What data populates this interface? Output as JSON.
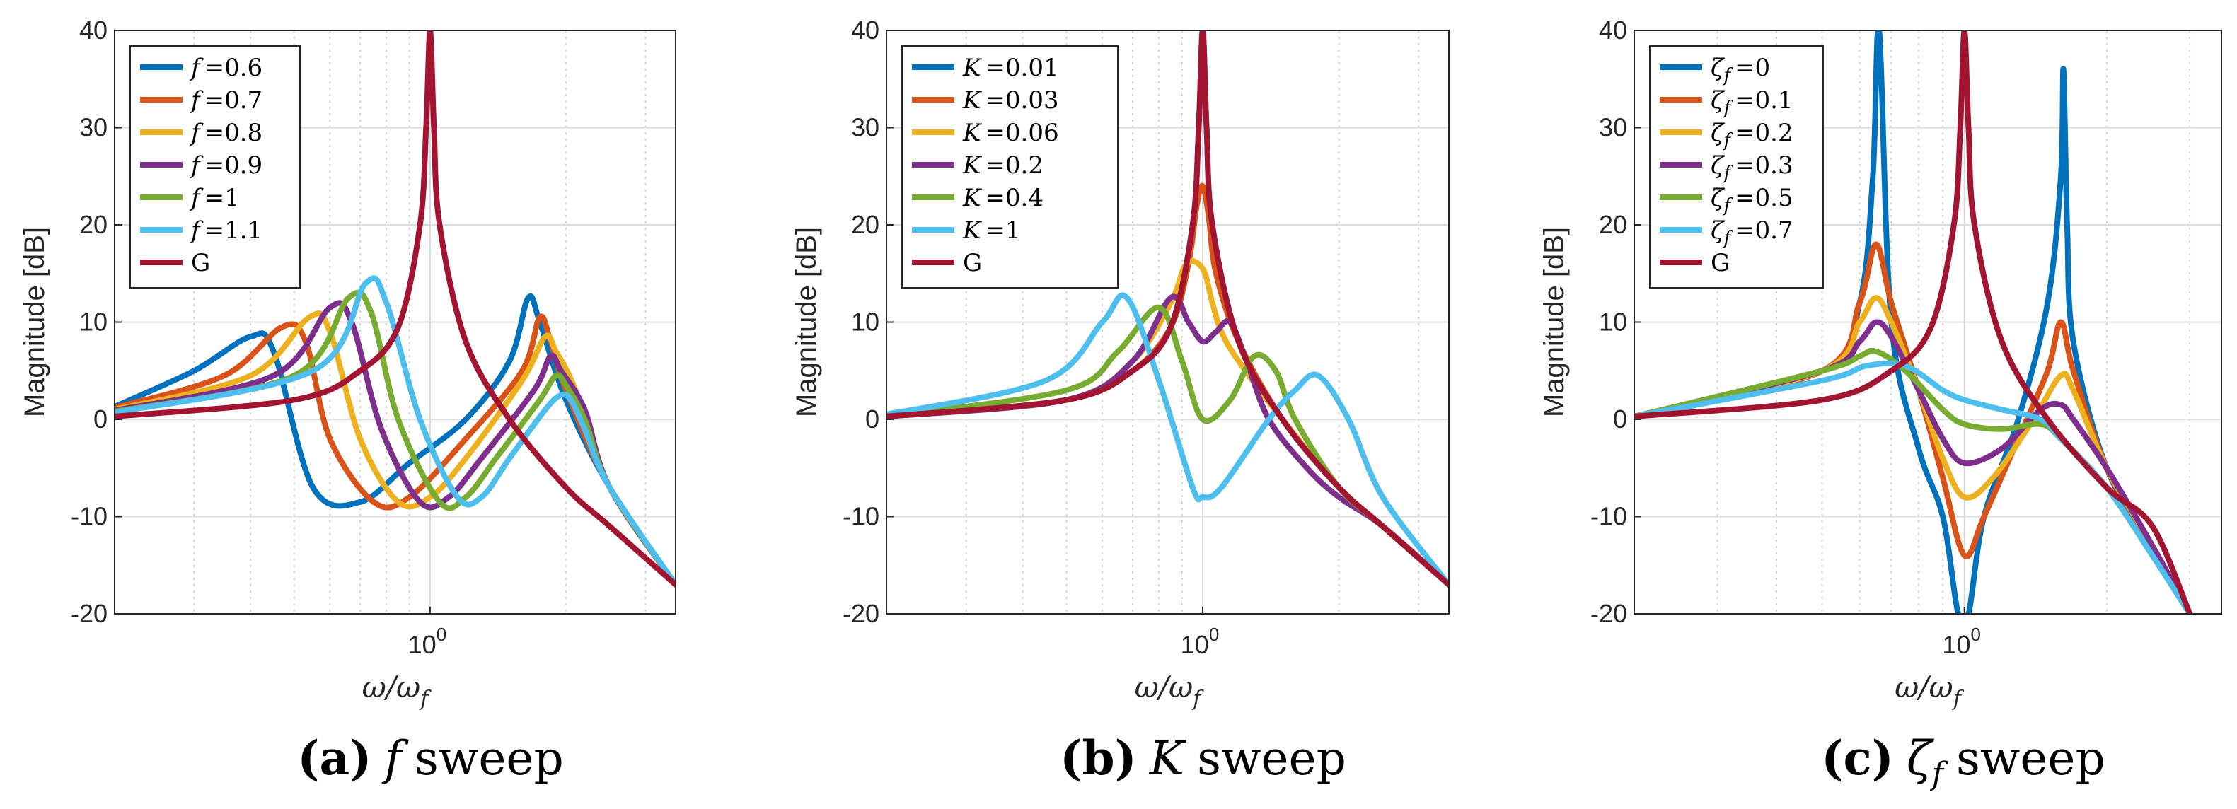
{
  "chart_data": [
    {
      "type": "line",
      "id": "a",
      "title": "",
      "xlabel": "ω/ω_f",
      "ylabel": "Magnitude [dB]",
      "xscale": "log",
      "xlim": [
        0.2,
        3.5
      ],
      "ylim": [
        -20,
        40
      ],
      "yticks": [
        -20,
        -10,
        0,
        10,
        20,
        30,
        40
      ],
      "xtick_label": "10^0",
      "grid": true,
      "legend_position": "top-left",
      "caption": {
        "letter": "(a)",
        "symbol": "f",
        "text": "sweep"
      },
      "series": [
        {
          "name": "f",
          "label": "=0.6",
          "color": "#0072BD",
          "x": [
            0.2,
            0.3,
            0.4,
            0.45,
            0.55,
            0.7,
            0.9,
            1.2,
            1.5,
            1.65,
            1.75,
            2.0,
            2.5,
            3.5
          ],
          "y": [
            1.3,
            5,
            8.5,
            7,
            -7,
            -8.5,
            -4.5,
            0,
            6,
            12.5,
            10,
            2,
            -7,
            -17
          ]
        },
        {
          "name": "f",
          "label": "=0.7",
          "color": "#D95319",
          "x": [
            0.2,
            0.35,
            0.47,
            0.53,
            0.6,
            0.75,
            0.9,
            1.2,
            1.6,
            1.75,
            1.85,
            2.0,
            2.5,
            3.5
          ],
          "y": [
            1.2,
            4.5,
            9.5,
            8,
            -2,
            -8.5,
            -8,
            -2,
            5,
            10.5,
            8,
            3,
            -7,
            -17
          ]
        },
        {
          "name": "f",
          "label": "=0.8",
          "color": "#EDB120",
          "x": [
            0.2,
            0.4,
            0.54,
            0.6,
            0.7,
            0.85,
            1.0,
            1.2,
            1.6,
            1.8,
            1.9,
            2.1,
            2.5,
            3.5
          ],
          "y": [
            1,
            4.5,
            10.5,
            9,
            -2,
            -8.5,
            -8,
            -4,
            4,
            8.5,
            7,
            3,
            -7,
            -17
          ]
        },
        {
          "name": "f",
          "label": "=0.9",
          "color": "#7E2F8E",
          "x": [
            0.2,
            0.45,
            0.6,
            0.67,
            0.78,
            0.95,
            1.1,
            1.3,
            1.7,
            1.85,
            1.95,
            2.2,
            2.5,
            3.5
          ],
          "y": [
            0.9,
            4.5,
            11.5,
            10,
            -1,
            -8.5,
            -8,
            -4,
            3,
            6.5,
            5,
            1,
            -7,
            -17
          ]
        },
        {
          "name": "f",
          "label": "=1",
          "color": "#77AC30",
          "x": [
            0.2,
            0.5,
            0.66,
            0.74,
            0.85,
            1.05,
            1.2,
            1.4,
            1.75,
            1.9,
            2.0,
            2.2,
            2.5,
            3.5
          ],
          "y": [
            0.8,
            4.5,
            12.5,
            11,
            0,
            -8.5,
            -8,
            -4,
            2,
            4.5,
            3.5,
            0,
            -7,
            -17
          ]
        },
        {
          "name": "f",
          "label": "=1.1",
          "color": "#4DBEEE",
          "x": [
            0.2,
            0.55,
            0.72,
            0.8,
            0.95,
            1.15,
            1.3,
            1.5,
            1.8,
            1.95,
            2.05,
            2.2,
            2.5,
            3.5
          ],
          "y": [
            0.7,
            5,
            14,
            12,
            0,
            -8,
            -8,
            -4,
            1,
            2.5,
            2,
            -1,
            -7,
            -17
          ]
        },
        {
          "name": "G",
          "label": "",
          "color": "#A2142F",
          "x": [
            0.2,
            0.5,
            0.7,
            0.85,
            0.95,
            0.98,
            1.0,
            1.02,
            1.05,
            1.2,
            1.5,
            2.0,
            2.5,
            3.5
          ],
          "y": [
            0.3,
            2,
            5,
            9.5,
            20,
            30,
            40,
            30,
            20,
            8,
            0,
            -7,
            -11,
            -17
          ]
        }
      ]
    },
    {
      "type": "line",
      "id": "b",
      "title": "",
      "xlabel": "ω/ω_f",
      "ylabel": "Magnitude [dB]",
      "xscale": "log",
      "xlim": [
        0.2,
        3.5
      ],
      "ylim": [
        -20,
        40
      ],
      "yticks": [
        -20,
        -10,
        0,
        10,
        20,
        30,
        40
      ],
      "xtick_label": "10^0",
      "grid": true,
      "legend_position": "top-left",
      "caption": {
        "letter": "(b)",
        "symbol": "K",
        "text": "sweep"
      },
      "series": [
        {
          "name": "K",
          "label": "=0.01",
          "color": "#0072BD",
          "x": [
            0.2,
            0.5,
            0.7,
            0.85,
            0.95,
            0.98,
            1.0,
            1.02,
            1.05,
            1.2,
            1.5,
            2.0,
            2.5,
            3.5
          ],
          "y": [
            0.3,
            2,
            5,
            9.5,
            20,
            30,
            40,
            30,
            20,
            8,
            0,
            -7,
            -11,
            -17
          ]
        },
        {
          "name": "K",
          "label": "=0.03",
          "color": "#D95319",
          "x": [
            0.2,
            0.5,
            0.7,
            0.85,
            0.93,
            0.97,
            1.0,
            1.03,
            1.07,
            1.2,
            1.5,
            2.0,
            2.5,
            3.5
          ],
          "y": [
            0.3,
            2,
            5,
            9.5,
            16,
            22,
            24,
            21,
            15,
            8,
            0,
            -7,
            -11,
            -17
          ]
        },
        {
          "name": "K",
          "label": "=0.06",
          "color": "#EDB120",
          "x": [
            0.2,
            0.5,
            0.7,
            0.85,
            0.92,
            1.0,
            1.05,
            1.1,
            1.2,
            1.5,
            2.0,
            2.5,
            3.5
          ],
          "y": [
            0.3,
            2,
            6,
            12,
            16,
            15.5,
            12,
            9,
            6,
            0,
            -7,
            -11,
            -17
          ]
        },
        {
          "name": "K",
          "label": "=0.2",
          "color": "#7E2F8E",
          "x": [
            0.2,
            0.5,
            0.7,
            0.85,
            0.93,
            1.0,
            1.07,
            1.15,
            1.25,
            1.4,
            1.7,
            2.0,
            2.5,
            3.5
          ],
          "y": [
            0.3,
            2,
            6,
            12.5,
            10,
            8,
            9,
            10,
            6,
            0,
            -5,
            -8,
            -11,
            -17
          ]
        },
        {
          "name": "K",
          "label": "=0.4",
          "color": "#77AC30",
          "x": [
            0.2,
            0.5,
            0.65,
            0.8,
            0.9,
            1.0,
            1.15,
            1.3,
            1.45,
            1.6,
            2.0,
            2.5,
            3.5
          ],
          "y": [
            0.3,
            3,
            7,
            11.5,
            6,
            0,
            2,
            6.5,
            5,
            0,
            -7,
            -11,
            -17
          ]
        },
        {
          "name": "K",
          "label": "=1",
          "color": "#4DBEEE",
          "x": [
            0.2,
            0.45,
            0.6,
            0.68,
            0.8,
            0.95,
            1.0,
            1.1,
            1.4,
            1.6,
            1.8,
            2.1,
            2.5,
            3.5
          ],
          "y": [
            0.5,
            4,
            10,
            12.5,
            4,
            -7,
            -8,
            -7,
            0,
            3,
            4.5,
            0,
            -8,
            -17
          ]
        },
        {
          "name": "G",
          "label": "",
          "color": "#A2142F",
          "x": [
            0.2,
            0.5,
            0.7,
            0.85,
            0.95,
            0.98,
            1.0,
            1.02,
            1.05,
            1.2,
            1.5,
            2.0,
            2.5,
            3.5
          ],
          "y": [
            0.3,
            2,
            5,
            9.5,
            20,
            30,
            40,
            30,
            20,
            8,
            0,
            -7,
            -11,
            -17
          ]
        }
      ]
    },
    {
      "type": "line",
      "id": "c",
      "title": "",
      "xlabel": "ω/ω_f",
      "ylabel": "Magnitude [dB]",
      "xscale": "log",
      "xlim": [
        0.2,
        3.5
      ],
      "ylim": [
        -20,
        40
      ],
      "yticks": [
        -20,
        -10,
        0,
        10,
        20,
        30,
        40
      ],
      "xtick_label": "10^0",
      "grid": true,
      "legend_position": "top-left",
      "caption": {
        "letter": "(c)",
        "symbol": "ζ",
        "symbol_sub": "f",
        "text": "sweep"
      },
      "series": [
        {
          "name": "ζ_f",
          "label": "=0",
          "color": "#0072BD",
          "x": [
            0.2,
            0.5,
            0.6,
            0.64,
            0.66,
            0.7,
            0.8,
            0.9,
            0.97,
            1.02,
            1.1,
            1.3,
            1.5,
            1.6,
            1.62,
            1.65,
            1.7,
            2.0,
            2.5,
            3.0
          ],
          "y": [
            0.3,
            5,
            12,
            25,
            40,
            10,
            -3,
            -10,
            -20,
            -20,
            -10,
            0,
            12,
            25,
            36,
            20,
            8,
            -5,
            -13,
            -20
          ]
        },
        {
          "name": "ζ_f",
          "label": "=0.1",
          "color": "#D95319",
          "x": [
            0.2,
            0.5,
            0.6,
            0.65,
            0.7,
            0.8,
            0.9,
            1.0,
            1.1,
            1.3,
            1.5,
            1.6,
            1.7,
            2.0,
            2.5,
            3.0
          ],
          "y": [
            0.3,
            5,
            12,
            18,
            12,
            3,
            -6,
            -14,
            -10,
            -2,
            5,
            10,
            5,
            -5,
            -13,
            -20
          ]
        },
        {
          "name": "ζ_f",
          "label": "=0.2",
          "color": "#EDB120",
          "x": [
            0.2,
            0.5,
            0.6,
            0.65,
            0.7,
            0.8,
            0.9,
            1.0,
            1.15,
            1.4,
            1.6,
            1.7,
            2.0,
            2.5,
            3.0
          ],
          "y": [
            0.3,
            5,
            10,
            12.5,
            10,
            3,
            -4,
            -8,
            -6,
            0,
            4.5,
            3,
            -5,
            -13,
            -20
          ]
        },
        {
          "name": "ζ_f",
          "label": "=0.3",
          "color": "#7E2F8E",
          "x": [
            0.2,
            0.5,
            0.6,
            0.65,
            0.7,
            0.8,
            0.9,
            1.0,
            1.2,
            1.45,
            1.6,
            1.7,
            2.0,
            2.5,
            3.0
          ],
          "y": [
            0.3,
            5,
            8,
            10,
            8.5,
            3,
            -2,
            -4.5,
            -3,
            1,
            1.5,
            0,
            -5,
            -13,
            -20
          ]
        },
        {
          "name": "ζ_f",
          "label": "=0.5",
          "color": "#77AC30",
          "x": [
            0.2,
            0.5,
            0.6,
            0.65,
            0.75,
            0.9,
            1.0,
            1.2,
            1.45,
            1.6,
            2.0,
            2.5,
            3.0
          ],
          "y": [
            0.3,
            5,
            6.5,
            7,
            5,
            1,
            -0.5,
            -1,
            -0.5,
            -2,
            -7,
            -14,
            -20
          ]
        },
        {
          "name": "ζ_f",
          "label": "=0.7",
          "color": "#4DBEEE",
          "x": [
            0.2,
            0.5,
            0.62,
            0.75,
            0.9,
            1.0,
            1.2,
            1.45,
            1.6,
            2.0,
            2.5,
            3.0
          ],
          "y": [
            0.3,
            4,
            5.5,
            5.5,
            3,
            2,
            1,
            0,
            -2,
            -7,
            -14,
            -20
          ]
        },
        {
          "name": "G",
          "label": "",
          "color": "#A2142F",
          "x": [
            0.2,
            0.5,
            0.7,
            0.85,
            0.95,
            0.98,
            1.0,
            1.02,
            1.05,
            1.2,
            1.5,
            2.0,
            2.5,
            3.0
          ],
          "y": [
            0.3,
            2,
            5,
            9.5,
            20,
            30,
            40,
            30,
            20,
            8,
            0,
            -7,
            -11,
            -20
          ]
        }
      ]
    }
  ]
}
